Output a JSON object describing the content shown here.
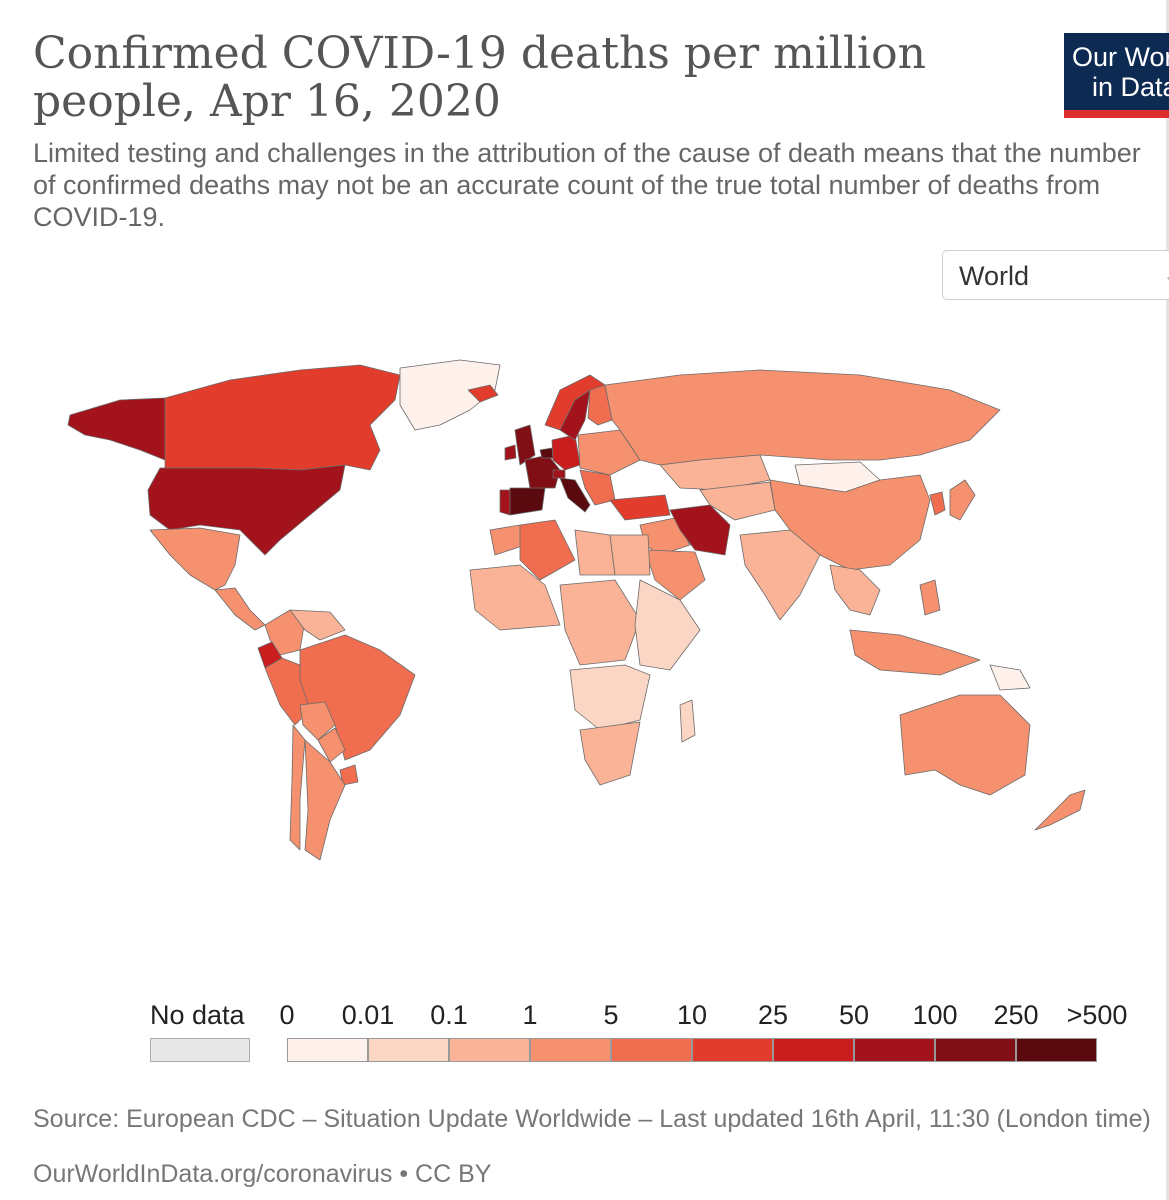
{
  "header": {
    "title": "Confirmed COVID-19 deaths per million people, Apr 16, 2020",
    "subtitle": "Limited testing and challenges in the attribution of the cause of death means that the number of confirmed deaths may not be an accurate count of the true total number of deaths from COVID-19."
  },
  "logo": {
    "line1": "Our World",
    "line2": "in Data",
    "bg": "#0c2a52",
    "stripe": "#dd2e2e"
  },
  "region_select": {
    "value": "World",
    "icon": "chevron-down-icon"
  },
  "legend": {
    "no_data_label": "No data",
    "no_data_color": "#e8e8e8",
    "ticks": [
      "0",
      "0.01",
      "0.1",
      "1",
      "5",
      "10",
      "25",
      "50",
      "100",
      "250",
      ">500"
    ],
    "colors": [
      "#fef0ea",
      "#fcd6c4",
      "#fab397",
      "#f6916f",
      "#f06e4f",
      "#e23d2c",
      "#c91d1e",
      "#a3131b",
      "#800e15",
      "#5a0a0f"
    ]
  },
  "map_data": {
    "regions": [
      {
        "name": "Canada",
        "bin": 5
      },
      {
        "name": "Alaska",
        "bin": 7
      },
      {
        "name": "United States",
        "bin": 7
      },
      {
        "name": "Mexico",
        "bin": 3
      },
      {
        "name": "Greenland",
        "bin": 0
      },
      {
        "name": "Central America",
        "bin": 3
      },
      {
        "name": "Colombia",
        "bin": 3
      },
      {
        "name": "Venezuela",
        "bin": 2
      },
      {
        "name": "Ecuador",
        "bin": 6
      },
      {
        "name": "Peru",
        "bin": 4
      },
      {
        "name": "Brazil",
        "bin": 4
      },
      {
        "name": "Bolivia",
        "bin": 3
      },
      {
        "name": "Paraguay",
        "bin": 3
      },
      {
        "name": "Argentina",
        "bin": 3
      },
      {
        "name": "Chile",
        "bin": 3
      },
      {
        "name": "Uruguay",
        "bin": 4
      },
      {
        "name": "Iceland",
        "bin": 5
      },
      {
        "name": "United Kingdom",
        "bin": 8
      },
      {
        "name": "Ireland",
        "bin": 7
      },
      {
        "name": "Spain",
        "bin": 9
      },
      {
        "name": "Portugal",
        "bin": 7
      },
      {
        "name": "France",
        "bin": 8
      },
      {
        "name": "Belgium",
        "bin": 9
      },
      {
        "name": "Italy",
        "bin": 9
      },
      {
        "name": "Germany",
        "bin": 6
      },
      {
        "name": "Switzerland",
        "bin": 7
      },
      {
        "name": "Sweden",
        "bin": 7
      },
      {
        "name": "Norway",
        "bin": 5
      },
      {
        "name": "Finland",
        "bin": 4
      },
      {
        "name": "Eastern Europe",
        "bin": 3
      },
      {
        "name": "Balkans",
        "bin": 4
      },
      {
        "name": "Russia",
        "bin": 3
      },
      {
        "name": "Kazakhstan",
        "bin": 2
      },
      {
        "name": "Mongolia",
        "bin": 0
      },
      {
        "name": "China",
        "bin": 3
      },
      {
        "name": "Turkey",
        "bin": 5
      },
      {
        "name": "Iran",
        "bin": 7
      },
      {
        "name": "Middle East",
        "bin": 3
      },
      {
        "name": "Saudi Arabia",
        "bin": 3
      },
      {
        "name": "Central Asia",
        "bin": 2
      },
      {
        "name": "India",
        "bin": 2
      },
      {
        "name": "Southeast Asia",
        "bin": 2
      },
      {
        "name": "Japan",
        "bin": 3
      },
      {
        "name": "Korea",
        "bin": 4
      },
      {
        "name": "Indonesia",
        "bin": 3
      },
      {
        "name": "Philippines",
        "bin": 3
      },
      {
        "name": "Papua New Guinea",
        "bin": 0
      },
      {
        "name": "Algeria",
        "bin": 4
      },
      {
        "name": "Morocco",
        "bin": 3
      },
      {
        "name": "Libya",
        "bin": 2
      },
      {
        "name": "Egypt",
        "bin": 2
      },
      {
        "name": "West Africa",
        "bin": 2
      },
      {
        "name": "Central Africa",
        "bin": 2
      },
      {
        "name": "East Africa",
        "bin": 1
      },
      {
        "name": "Southern Africa",
        "bin": 1
      },
      {
        "name": "South Africa",
        "bin": 2
      },
      {
        "name": "Madagascar",
        "bin": 1
      },
      {
        "name": "Australia",
        "bin": 3
      },
      {
        "name": "New Zealand",
        "bin": 3
      }
    ]
  },
  "footer": {
    "source": "Source: European CDC – Situation Update Worldwide – Last updated 16th April, 11:30 (London time)",
    "url": "OurWorldInData.org/coronavirus • CC BY"
  }
}
